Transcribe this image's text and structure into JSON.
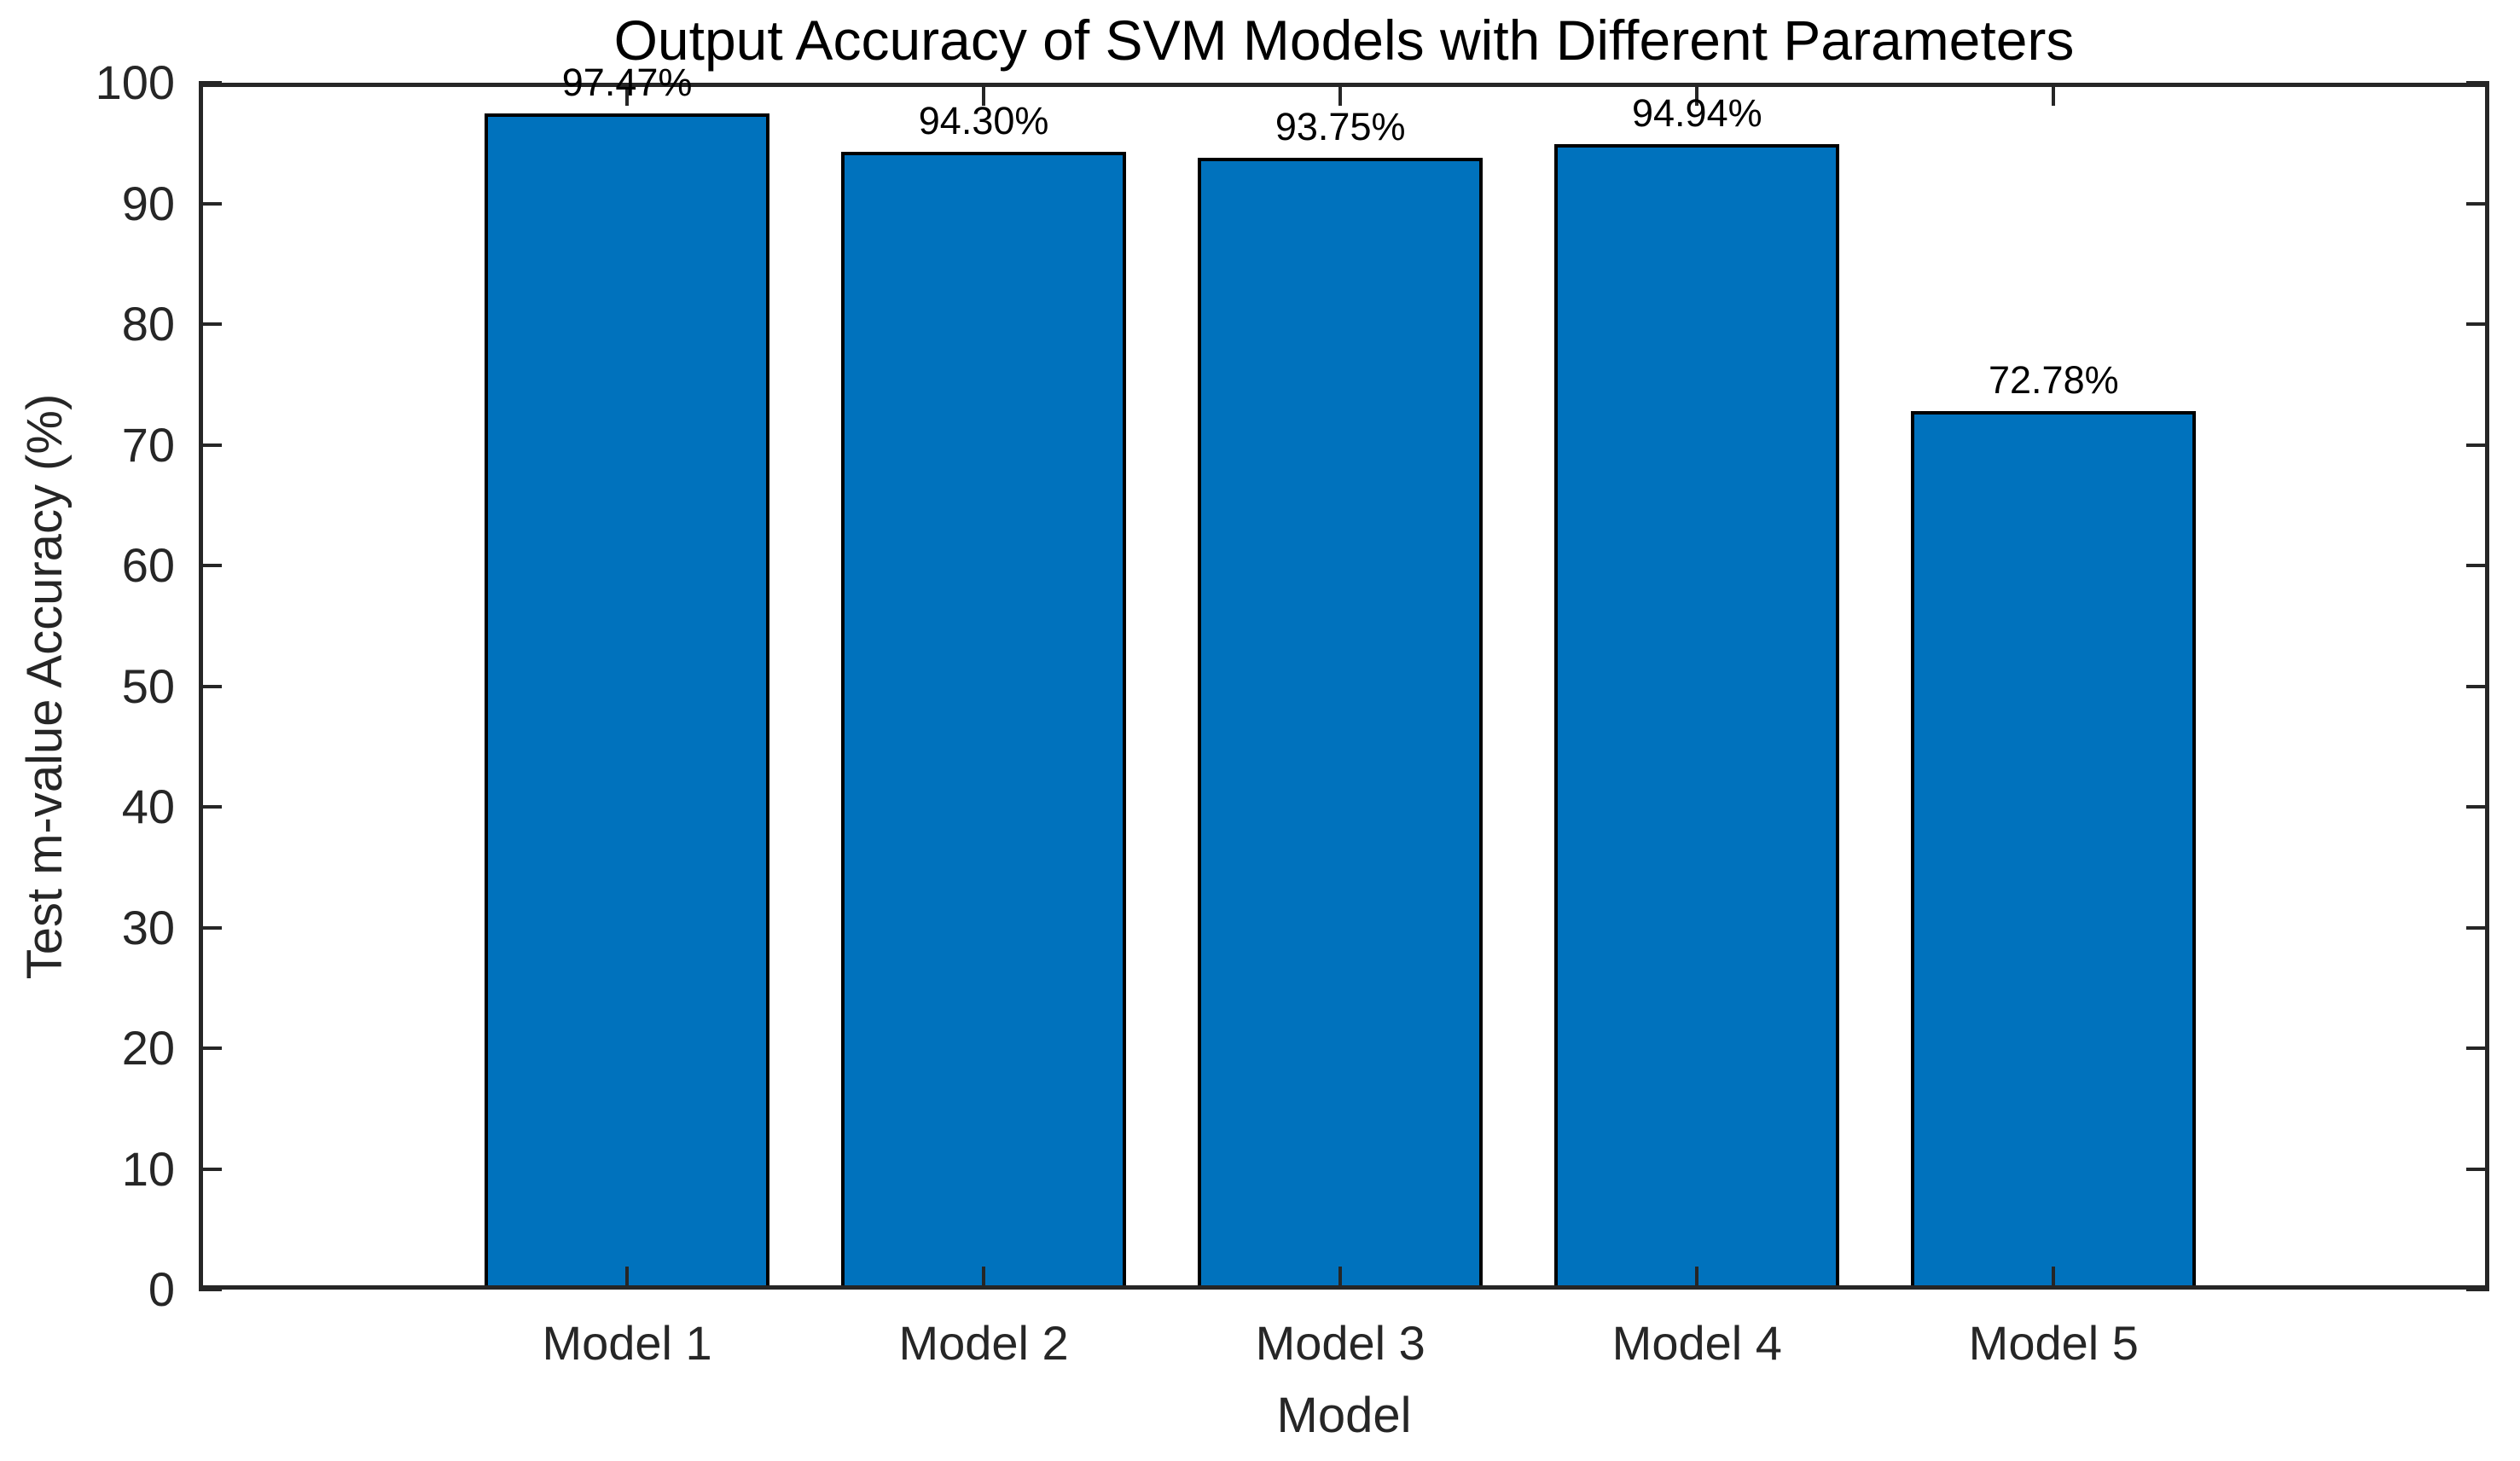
{
  "chart_data": {
    "type": "bar",
    "title": "Output Accuracy of SVM Models with Different Parameters",
    "xlabel": "Model",
    "ylabel": "Test m-value Accuracy (%)",
    "categories": [
      "Model 1",
      "Model 2",
      "Model 3",
      "Model 4",
      "Model 5"
    ],
    "values": [
      97.47,
      94.3,
      93.75,
      94.94,
      72.78
    ],
    "bar_labels": [
      "97.47%",
      "94.30%",
      "93.75%",
      "94.94%",
      "72.78%"
    ],
    "ylim": [
      0,
      100
    ],
    "yticks": [
      0,
      10,
      20,
      30,
      40,
      50,
      60,
      70,
      80,
      90,
      100
    ],
    "grid": false,
    "legend": "none",
    "box": true,
    "tick_direction": "in",
    "colors": {
      "bar_fill": "#0072BD",
      "bar_edge": "#000000",
      "axis": "#262626",
      "text": "#262626",
      "title_text": "#000000",
      "background": "#FFFFFF"
    },
    "layout": {
      "first_center_frac": 0.187,
      "center_step_frac": 0.1557,
      "bar_width_frac": 0.1244
    }
  }
}
